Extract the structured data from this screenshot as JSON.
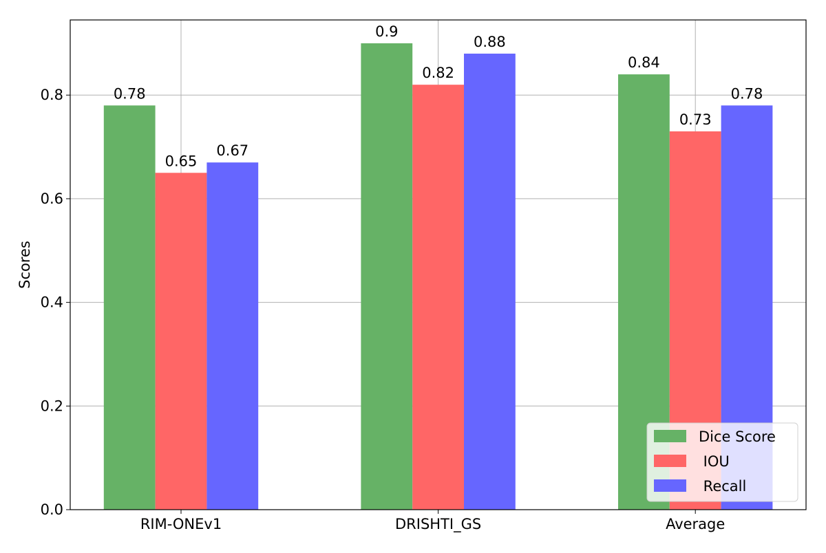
{
  "chart_data": {
    "type": "bar",
    "title": "",
    "xlabel": "",
    "ylabel": "Scores",
    "categories": [
      "RIM-ONEv1",
      "DRISHTI_GS",
      "Average"
    ],
    "series": [
      {
        "name": "Dice Score",
        "values": [
          0.78,
          0.9,
          0.84
        ],
        "color": "#66b266"
      },
      {
        "name": "IOU",
        "values": [
          0.65,
          0.82,
          0.73
        ],
        "color": "#ff6666"
      },
      {
        "name": "Recall",
        "values": [
          0.67,
          0.88,
          0.78
        ],
        "color": "#6666ff"
      }
    ],
    "value_labels": [
      [
        "0.78",
        "0.9",
        "0.84"
      ],
      [
        "0.65",
        "0.82",
        "0.73"
      ],
      [
        "0.67",
        "0.88",
        "0.78"
      ]
    ],
    "legend_labels": [
      "Dice Score",
      " IOU",
      " Recall"
    ],
    "ylim": [
      0,
      0.945
    ],
    "yticks": [
      "0.0",
      "0.2",
      "0.4",
      "0.6",
      "0.8"
    ],
    "grid": true,
    "legend_position": "lower-right"
  }
}
